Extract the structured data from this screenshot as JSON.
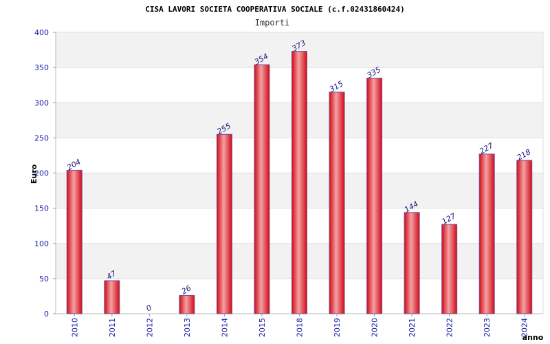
{
  "chart_data": {
    "type": "bar",
    "title": "CISA LAVORI SOCIETA COOPERATIVA SOCIALE (c.f.02431860424)",
    "subtitle": "Importi",
    "ylabel": "Euro",
    "xlabel": "anno",
    "categories": [
      "2010",
      "2011",
      "2012",
      "2013",
      "2014",
      "2015",
      "2018",
      "2019",
      "2020",
      "2021",
      "2022",
      "2023",
      "2024"
    ],
    "values": [
      204,
      47,
      0,
      26,
      255,
      354,
      373,
      315,
      335,
      144,
      127,
      227,
      218
    ],
    "ylim": [
      0,
      400
    ],
    "yticks": [
      "0",
      "50",
      "100",
      "150",
      "200",
      "250",
      "300",
      "350",
      "400"
    ],
    "grid": true,
    "legend": "none",
    "colors": {
      "bar": "#e8141c",
      "bar_highlight": "#f0a0a4",
      "band": "#f2f2f2",
      "grid": "#dddddd",
      "tick_text": "#1a1aa8",
      "label_text": "#1a1a80"
    }
  }
}
